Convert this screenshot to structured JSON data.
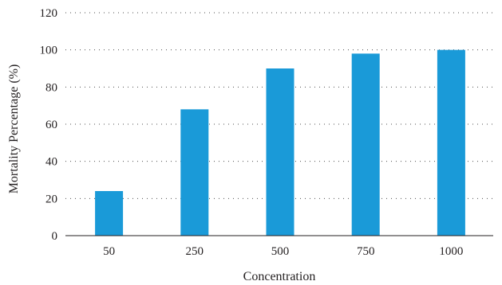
{
  "chart_data": {
    "type": "bar",
    "categories": [
      "50",
      "250",
      "500",
      "750",
      "1000"
    ],
    "values": [
      24,
      68,
      90,
      98,
      100
    ],
    "xlabel": "Concentration",
    "ylabel": "Mortality Percentage (%)",
    "ylim": [
      0,
      120
    ],
    "yticks": [
      "0",
      "20",
      "40",
      "60",
      "80",
      "100",
      "120"
    ],
    "grid": "horizontal dotted",
    "legend": "none",
    "bar_color": "#1a9ad8"
  }
}
